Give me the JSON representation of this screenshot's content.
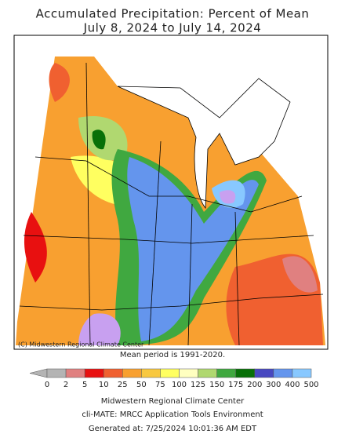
{
  "title": [
    "Accumulated Precipitation: Percent of Mean",
    "July 8, 2024 to July 14, 2024"
  ],
  "copyright": "(C) Midwestern Regional Climate Center",
  "note": "Mean period is 1991-2020.",
  "legend": {
    "labels": [
      0,
      2,
      5,
      10,
      25,
      50,
      75,
      100,
      125,
      150,
      175,
      200,
      300,
      400,
      500
    ],
    "under_color": "#b4b4b4",
    "colors": [
      "#b4b4b4",
      "#e08080",
      "#e81010",
      "#f06030",
      "#f8a030",
      "#f8c840",
      "#ffff60",
      "#ffffc0",
      "#b0d870",
      "#40a840",
      "#087008",
      "#4848c0",
      "#6495ed",
      "#88c8ff"
    ]
  },
  "footer": [
    "Midwestern Regional Climate Center",
    "cli-MATE: MRCC Application Tools Environment",
    "Generated at: 7/25/2024 10:01:36 AM EDT"
  ]
}
